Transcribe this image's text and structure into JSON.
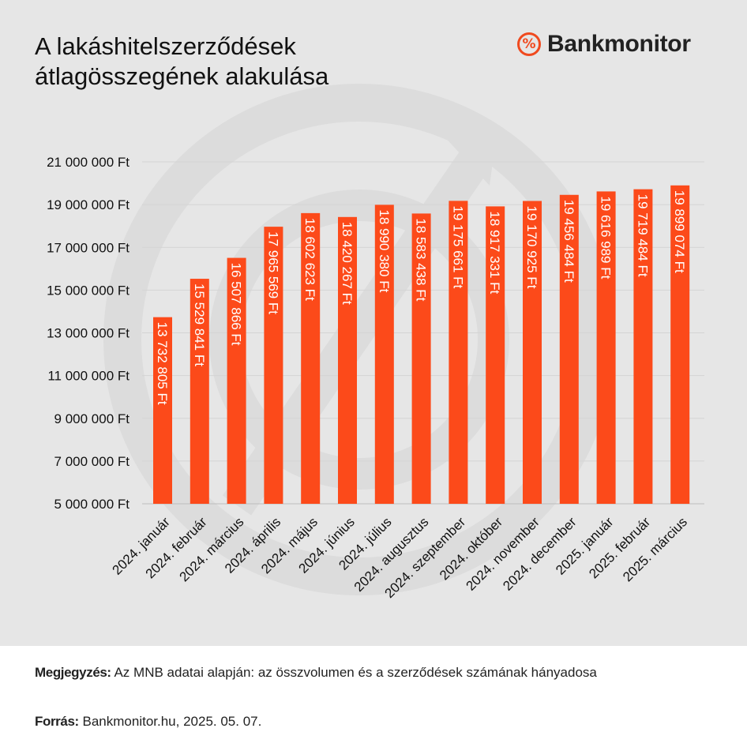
{
  "brand": {
    "name": "Bankmonitor",
    "icon": "percent-circle-icon",
    "color": "#f04a1f"
  },
  "footer": {
    "note_label": "Megjegyzés:",
    "note_text": " Az MNB adatai alapján: az összvolumen és a szerződések számának hányadosa",
    "source_label": "Forrás:",
    "source_text": " Bankmonitor.hu, 2025. 05. 07."
  },
  "colors": {
    "bar": "#fc4a1a",
    "background": "#e6e6e6",
    "grid": "#d4d4d4"
  },
  "chart_data": {
    "type": "bar",
    "title_lines": [
      "A lakáshitelszerződések",
      "átlagösszegének alakulása"
    ],
    "xlabel": "",
    "ylabel": "",
    "ylim": [
      5000000,
      21000000
    ],
    "yticks": [
      5000000,
      7000000,
      9000000,
      11000000,
      13000000,
      15000000,
      17000000,
      19000000,
      21000000
    ],
    "ytick_labels": [
      "5 000 000 Ft",
      "7 000 000 Ft",
      "9 000 000 Ft",
      "11 000 000 Ft",
      "13 000 000 Ft",
      "15 000 000 Ft",
      "17 000 000 Ft",
      "19 000 000 Ft",
      "21 000 000 Ft"
    ],
    "grid": true,
    "categories": [
      "2024. január",
      "2024. február",
      "2024. március",
      "2024. április",
      "2024. május",
      "2024. június",
      "2024. július",
      "2024. augusztus",
      "2024. szeptember",
      "2024. október",
      "2024. november",
      "2024. december",
      "2025. január",
      "2025. február",
      "2025. március"
    ],
    "values": [
      13732805,
      15529841,
      16507866,
      17965569,
      18602623,
      18420267,
      18990380,
      18583438,
      19175661,
      18917331,
      19170925,
      19456484,
      19616989,
      19719484,
      19899074
    ],
    "value_labels": [
      "13 732 805 Ft",
      "15 529 841 Ft",
      "16 507 866 Ft",
      "17 965 569 Ft",
      "18 602 623 Ft",
      "18 420 267 Ft",
      "18 990 380 Ft",
      "18 583 438 Ft",
      "19 175 661 Ft",
      "18 917 331 Ft",
      "19 170 925 Ft",
      "19 456 484 Ft",
      "19 616 989 Ft",
      "19 719 484 Ft",
      "19 899 074 Ft"
    ]
  }
}
